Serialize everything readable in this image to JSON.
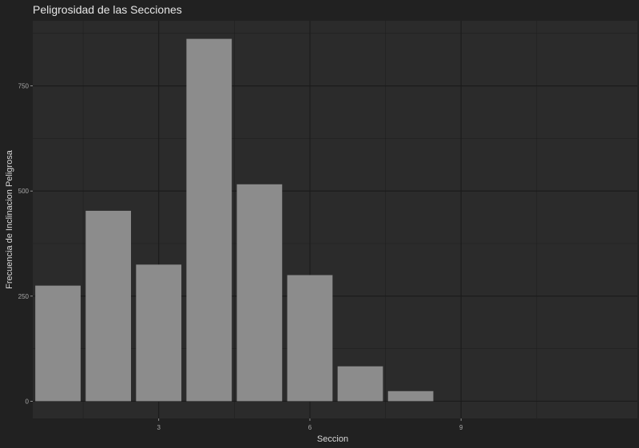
{
  "chart_data": {
    "type": "bar",
    "title": "Peligrosidad de las Secciones",
    "xlabel": "Seccion",
    "ylabel": "Frecuencia de Inclinacion Peligrosa",
    "x": [
      1,
      2,
      3,
      4,
      5,
      6,
      7,
      8
    ],
    "values": [
      275,
      453,
      325,
      862,
      516,
      300,
      83,
      24
    ],
    "xlim": [
      0.5,
      12.5
    ],
    "ylim": [
      -41,
      905
    ],
    "x_ticks": [
      3,
      6,
      9
    ],
    "x_tick_labels": [
      "3",
      "6",
      "9"
    ],
    "y_ticks": [
      0,
      250,
      500,
      750
    ],
    "y_tick_labels": [
      "0",
      "250",
      "500",
      "750"
    ],
    "bar_color": "#8c8c8c",
    "panel_color": "#2b2b2b",
    "background_color": "#212121",
    "grid_color": "#1b1b1b",
    "grid": true
  }
}
